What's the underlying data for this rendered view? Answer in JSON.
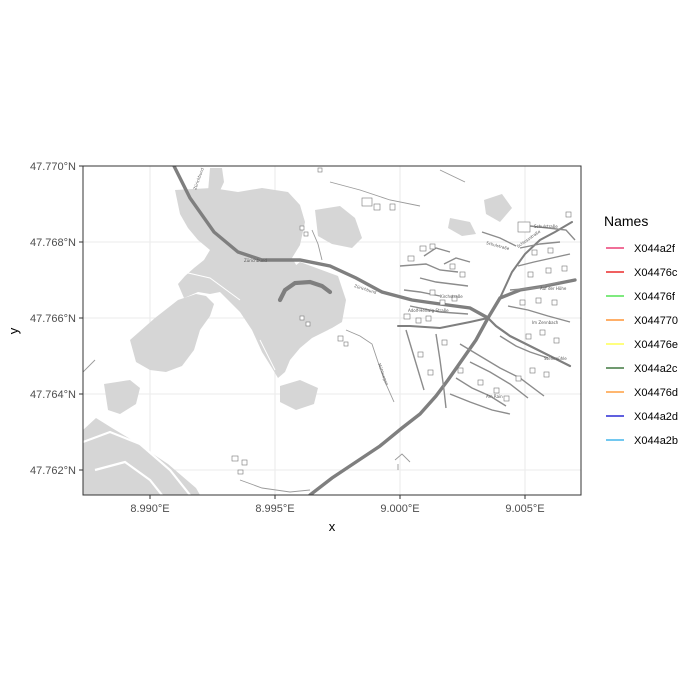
{
  "chart_data": {
    "type": "map",
    "title": "",
    "xlabel": "x",
    "ylabel": "y",
    "x_ticks": [
      "8.990°E",
      "8.995°E",
      "9.000°E",
      "9.005°E"
    ],
    "y_ticks": [
      "47.770°N",
      "47.768°N",
      "47.766°N",
      "47.764°N",
      "47.762°N"
    ],
    "grid": true,
    "legend": {
      "title": "Names",
      "placement": "right",
      "entries": [
        {
          "label": "X044a2f",
          "color": "#e6195a"
        },
        {
          "label": "X04476c",
          "color": "#e60000"
        },
        {
          "label": "X04476f",
          "color": "#33dd33"
        },
        {
          "label": "X044770",
          "color": "#ff7f0e"
        },
        {
          "label": "X04476e",
          "color": "#ffff33"
        },
        {
          "label": "X044a2c",
          "color": "#1a5e1a"
        },
        {
          "label": "X04476d",
          "color": "#ff8c1a"
        },
        {
          "label": "X044a2d",
          "color": "#0000cc"
        },
        {
          "label": "X044a2b",
          "color": "#1ea8e6"
        }
      ]
    },
    "colors": {
      "panel_border": "#333333",
      "grid": "#ebebeb",
      "forest": "#d6d6d6",
      "road": "#7f7f7f"
    }
  }
}
